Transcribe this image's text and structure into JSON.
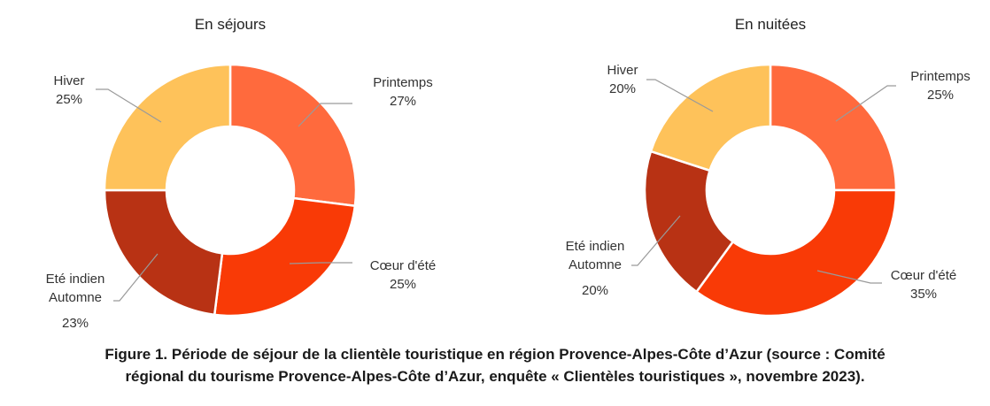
{
  "chart_data": [
    {
      "type": "pie",
      "donut": true,
      "title": "En séjours",
      "slices": [
        {
          "label": "Printemps",
          "value": 27,
          "value_label": "27%",
          "color": "#ff6a3d"
        },
        {
          "label": "Cœur d'été",
          "value": 25,
          "value_label": "25%",
          "color": "#f93a06"
        },
        {
          "label": "Eté indien\nAutomne",
          "value": 23,
          "value_label": "23%",
          "color": "#b83214"
        },
        {
          "label": "Hiver",
          "value": 25,
          "value_label": "25%",
          "color": "#fec25a"
        }
      ]
    },
    {
      "type": "pie",
      "donut": true,
      "title": "En nuitées",
      "slices": [
        {
          "label": "Printemps",
          "value": 25,
          "value_label": "25%",
          "color": "#ff6a3d"
        },
        {
          "label": "Cœur d'été",
          "value": 35,
          "value_label": "35%",
          "color": "#f93a06"
        },
        {
          "label": "Eté indien\nAutomne",
          "value": 20,
          "value_label": "20%",
          "color": "#b83214"
        },
        {
          "label": "Hiver",
          "value": 20,
          "value_label": "20%",
          "color": "#fec25a"
        }
      ]
    }
  ],
  "caption": {
    "line1": "Figure 1. Période de séjour de la clientèle touristique en région Provence-Alpes-Côte d’Azur (source : Comité",
    "line2": "régional du tourisme Provence-Alpes-Côte d’Azur, enquête « Clientèles touristiques », novembre 2023)."
  }
}
